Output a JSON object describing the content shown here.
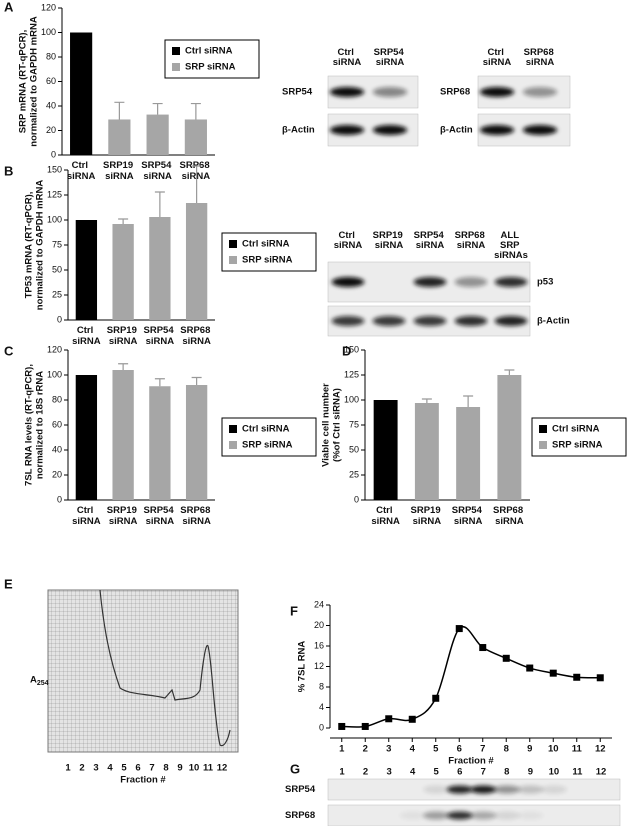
{
  "panel_labels": [
    "A",
    "B",
    "C",
    "D",
    "E",
    "F",
    "G"
  ],
  "chart_data": [
    {
      "type": "bar",
      "y_label": [
        "SRP mRNA (RT-qPCR),",
        "normalized to GAPDH mRNA"
      ],
      "categories": [
        "Ctrl siRNA",
        "SRP19 siRNA",
        "SRP54 siRNA",
        "SRP68 siRNA"
      ],
      "series": [
        {
          "name": "Ctrl siRNA",
          "color": "#000000",
          "values": [
            100,
            null,
            null,
            null
          ],
          "errors": [
            null,
            null,
            null,
            null
          ]
        },
        {
          "name": "SRP siRNA",
          "color": "#a6a6a6",
          "values": [
            null,
            29,
            33,
            29
          ],
          "errors": [
            null,
            14,
            9,
            13
          ]
        }
      ],
      "ylim": [
        0,
        120
      ],
      "yticks": [
        0,
        20,
        40,
        60,
        80,
        100,
        120
      ],
      "legend": "right"
    },
    {
      "type": "bar",
      "y_label": [
        "TP53 mRNA (RT-qPCR),",
        "normalized to GAPDH mRNA"
      ],
      "categories": [
        "Ctrl siRNA",
        "SRP19 siRNA",
        "SRP54 siRNA",
        "SRP68 siRNA"
      ],
      "series": [
        {
          "name": "Ctrl siRNA",
          "color": "#000000",
          "values": [
            100,
            null,
            null,
            null
          ],
          "errors": [
            null,
            null,
            null,
            null
          ]
        },
        {
          "name": "SRP siRNA",
          "color": "#a6a6a6",
          "values": [
            null,
            96,
            103,
            117
          ],
          "errors": [
            null,
            5,
            25,
            37
          ]
        }
      ],
      "ylim": [
        0,
        150
      ],
      "yticks": [
        0,
        25,
        50,
        75,
        100,
        125,
        150
      ],
      "legend": "right"
    },
    {
      "type": "bar",
      "y_label": [
        "7SL RNA levels (RT-qPCR),",
        "normalized to 18S rRNA"
      ],
      "categories": [
        "Ctrl siRNA",
        "SRP19 siRNA",
        "SRP54 siRNA",
        "SRP68 siRNA"
      ],
      "series": [
        {
          "name": "Ctrl siRNA",
          "color": "#000000",
          "values": [
            100,
            null,
            null,
            null
          ],
          "errors": [
            null,
            null,
            null,
            null
          ]
        },
        {
          "name": "SRP siRNA",
          "color": "#a6a6a6",
          "values": [
            null,
            104,
            91,
            92
          ],
          "errors": [
            null,
            5,
            6,
            6
          ]
        }
      ],
      "ylim": [
        0,
        120
      ],
      "yticks": [
        0,
        20,
        40,
        60,
        80,
        100,
        120
      ],
      "legend": "right"
    },
    {
      "type": "bar",
      "y_label": [
        "Viable cell number",
        "(%of Ctrl siRNA)"
      ],
      "categories": [
        "Ctrl siRNA",
        "SRP19 siRNA",
        "SRP54 siRNA",
        "SRP68 siRNA"
      ],
      "series": [
        {
          "name": "Ctrl siRNA",
          "color": "#000000",
          "values": [
            100,
            null,
            null,
            null
          ],
          "errors": [
            null,
            null,
            null,
            null
          ]
        },
        {
          "name": "SRP siRNA",
          "color": "#a6a6a6",
          "values": [
            null,
            97,
            93,
            125
          ],
          "errors": [
            null,
            4,
            11,
            5
          ]
        }
      ],
      "ylim": [
        0,
        150
      ],
      "yticks": [
        0,
        25,
        50,
        75,
        100,
        125,
        150
      ],
      "legend": "right"
    },
    {
      "type": "line",
      "y_label": [
        "% 7SL RNA"
      ],
      "x_label": "Fraction #",
      "x": [
        1,
        2,
        3,
        4,
        5,
        6,
        7,
        8,
        9,
        10,
        11,
        12
      ],
      "series": [
        {
          "name": "7SL RNA",
          "color": "#000000",
          "values": [
            0.3,
            0.3,
            1.8,
            1.7,
            5.8,
            19.4,
            15.7,
            13.6,
            11.7,
            10.7,
            9.9,
            9.8
          ]
        }
      ],
      "xlim": [
        0.5,
        12.5
      ],
      "xticks": [
        1,
        2,
        3,
        4,
        5,
        6,
        7,
        8,
        9,
        10,
        11,
        12
      ],
      "ylim": [
        0,
        24
      ],
      "yticks": [
        0,
        4,
        8,
        12,
        16,
        20,
        24
      ]
    }
  ],
  "blots": [
    {
      "columns": [
        "Ctrl siRNA",
        "SRP54 siRNA"
      ],
      "rows": [
        "SRP54",
        "β-Actin"
      ]
    },
    {
      "columns": [
        "Ctrl siRNA",
        "SRP68 siRNA"
      ],
      "rows": [
        "SRP68",
        "β-Actin"
      ]
    },
    {
      "columns": [
        "Ctrl siRNA",
        "SRP19 siRNA",
        "SRP54 siRNA",
        "SRP68 siRNA",
        "ALL SRP siRNAs"
      ],
      "rows": [
        "p53",
        "β-Actin"
      ]
    },
    {
      "columns": [
        "1",
        "2",
        "3",
        "4",
        "5",
        "6",
        "7",
        "8",
        "9",
        "10",
        "11",
        "12"
      ],
      "rows": [
        "SRP54",
        "SRP68"
      ]
    }
  ],
  "trace": {
    "y_label": "A254",
    "x_label": "Fraction #",
    "ticks": [
      "1",
      "2",
      "3",
      "4",
      "5",
      "6",
      "7",
      "8",
      "9",
      "10",
      "11",
      "12"
    ]
  }
}
